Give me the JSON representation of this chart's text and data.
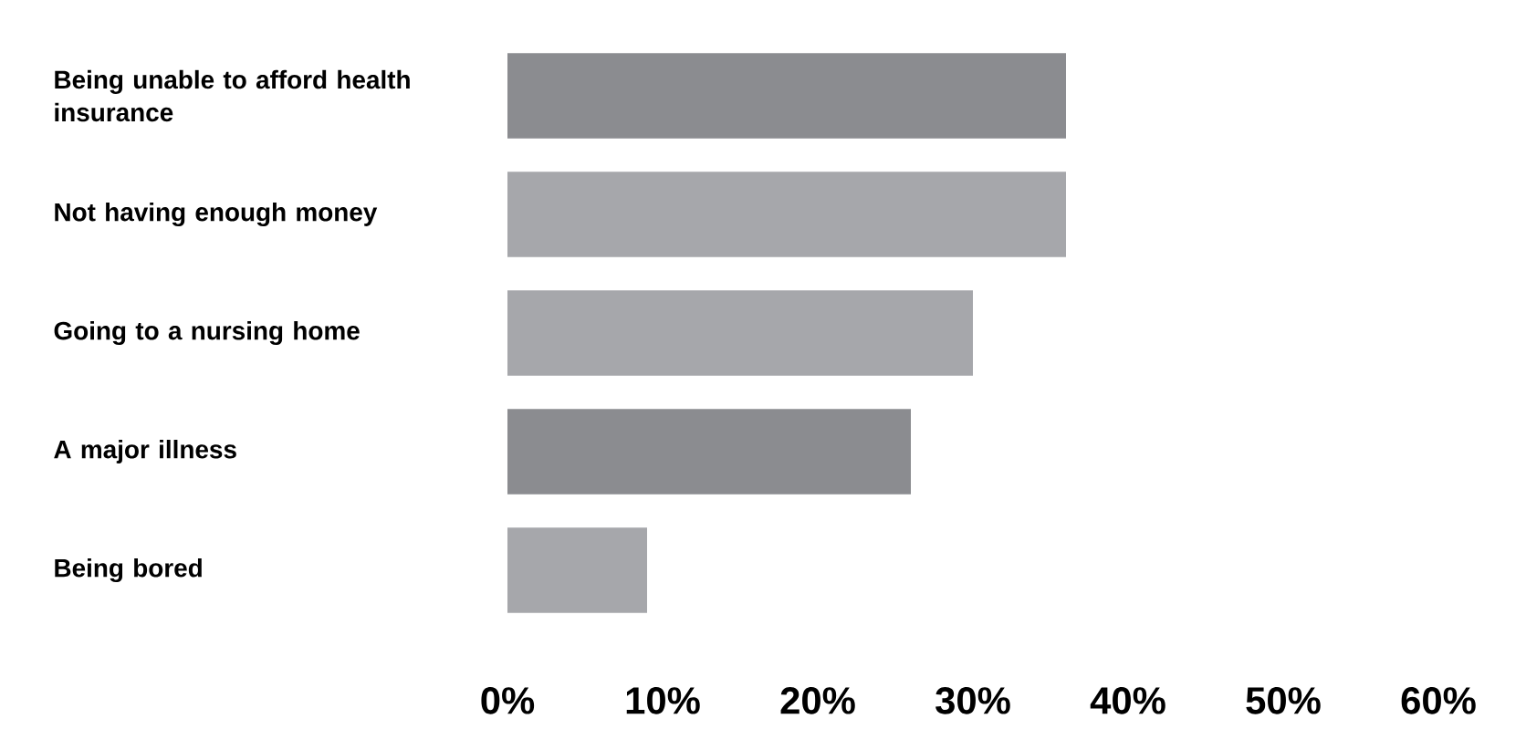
{
  "chart_data": {
    "type": "bar",
    "orientation": "horizontal",
    "categories": [
      "Being unable to afford health insurance",
      "Not having enough money",
      "Going to a nursing home",
      "A major illness",
      "Being bored"
    ],
    "values": [
      36,
      36,
      30,
      26,
      9
    ],
    "colors": [
      "#8b8c90",
      "#a6a7ab",
      "#a6a7ab",
      "#8b8c90",
      "#a6a7ab"
    ],
    "xlim": [
      0,
      60
    ],
    "xticks": [
      {
        "value": 0,
        "label": "0%"
      },
      {
        "value": 10,
        "label": "10%"
      },
      {
        "value": 20,
        "label": "20%"
      },
      {
        "value": 30,
        "label": "30%"
      },
      {
        "value": 40,
        "label": "40%"
      },
      {
        "value": 50,
        "label": "50%"
      },
      {
        "value": 60,
        "label": "60%"
      }
    ],
    "grid": false
  }
}
